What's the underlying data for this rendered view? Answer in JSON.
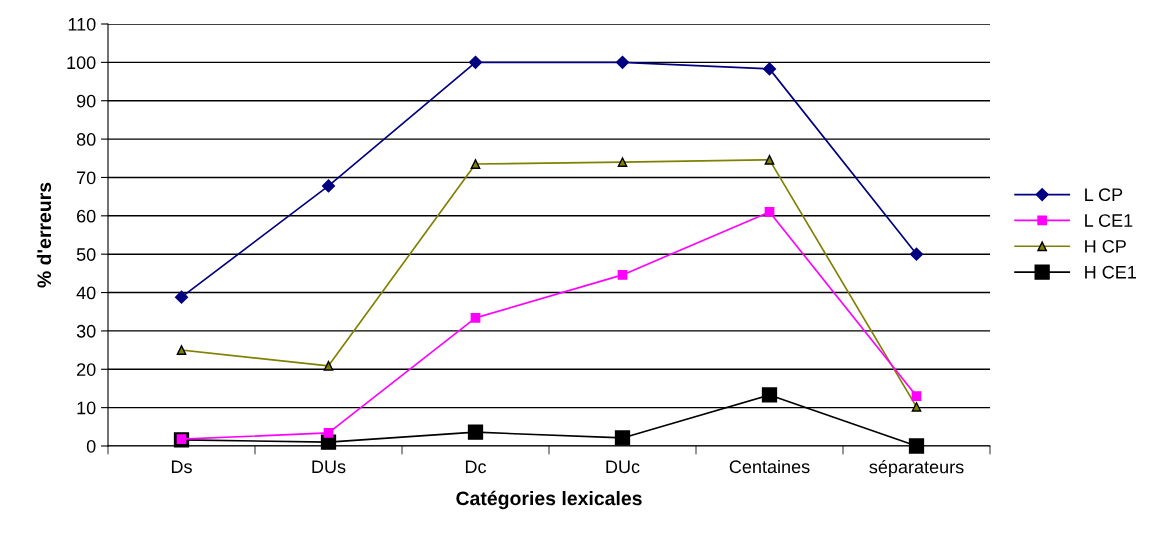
{
  "chart_data": {
    "type": "line",
    "xlabel": "Catégories lexicales",
    "ylabel": "% d'erreurs",
    "categories": [
      "Ds",
      "DUs",
      "Dc",
      "DUc",
      "Centaines",
      "séparateurs"
    ],
    "series": [
      {
        "name": "L CP",
        "color": "#000080",
        "marker": "diamond",
        "values": [
          38.8,
          67.8,
          100,
          100,
          98.3,
          50
        ]
      },
      {
        "name": "L CE1",
        "color": "#ff00ff",
        "marker": "square",
        "values": [
          1.8,
          3.4,
          33.4,
          44.6,
          61,
          13
        ]
      },
      {
        "name": "H CP",
        "color": "#808000",
        "marker": "triangle",
        "values": [
          25,
          20.9,
          73.5,
          74,
          74.6,
          10.2
        ]
      },
      {
        "name": "H CE1",
        "color": "#000000",
        "marker": "square",
        "values": [
          1.6,
          1,
          3.6,
          2.1,
          13.3,
          0
        ]
      }
    ],
    "ylim": [
      0,
      110
    ],
    "yticks": [
      0,
      10,
      20,
      30,
      40,
      50,
      60,
      70,
      80,
      90,
      100,
      110
    ],
    "grid": "y",
    "legend": "right",
    "line_style": "solid"
  }
}
